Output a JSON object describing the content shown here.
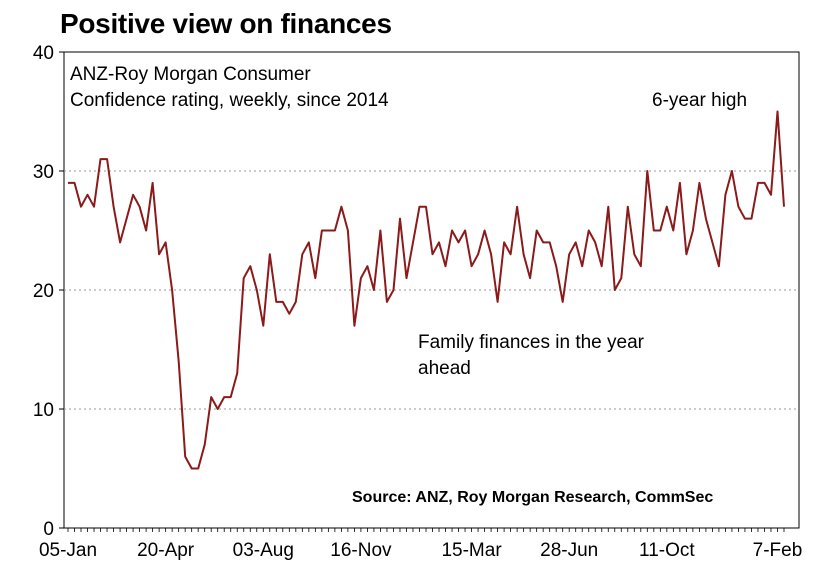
{
  "chart_data": {
    "type": "line",
    "title": "Positive view on finances",
    "subtitle_lines": [
      "ANZ-Roy Morgan Consumer",
      "Confidence rating, weekly, since 2014"
    ],
    "series_label_lines": [
      "Family finances in the year",
      "ahead"
    ],
    "annotation": "6-year high",
    "source": "Source: ANZ, Roy Morgan Research, CommSec",
    "xlabel": "",
    "ylabel": "",
    "ylim": [
      0,
      40
    ],
    "yticks": [
      0,
      10,
      20,
      30,
      40
    ],
    "grid": true,
    "line_color": "#8b1a1a",
    "x_tick_labels": [
      "05-Jan",
      "20-Apr",
      "03-Aug",
      "16-Nov",
      "15-Mar",
      "28-Jun",
      "11-Oct",
      "7-Feb"
    ],
    "x_tick_weeks": [
      0,
      15,
      30,
      45,
      62,
      77,
      92,
      109
    ],
    "series": [
      {
        "values": [
          29,
          29,
          27,
          28,
          27,
          31,
          31,
          27,
          24,
          26,
          28,
          27,
          25,
          29,
          23,
          24,
          20,
          14,
          6,
          5,
          5,
          7,
          11,
          10,
          11,
          11,
          13,
          21,
          22,
          20,
          17,
          23,
          19,
          19,
          18,
          19,
          23,
          24,
          21,
          25,
          25,
          25,
          27,
          25,
          17,
          21,
          22,
          20,
          25,
          19,
          20,
          26,
          21,
          24,
          27,
          27,
          23,
          24,
          22,
          25,
          24,
          25,
          22,
          23,
          25,
          23,
          19,
          24,
          23,
          27,
          23,
          21,
          25,
          24,
          24,
          22,
          19,
          23,
          24,
          22,
          25,
          24,
          22,
          27,
          20,
          21,
          27,
          23,
          22,
          30,
          25,
          25,
          27,
          25,
          29,
          23,
          25,
          29,
          26,
          24,
          22,
          28,
          30,
          27,
          26,
          26,
          29,
          29,
          28,
          35,
          27
        ]
      }
    ]
  }
}
